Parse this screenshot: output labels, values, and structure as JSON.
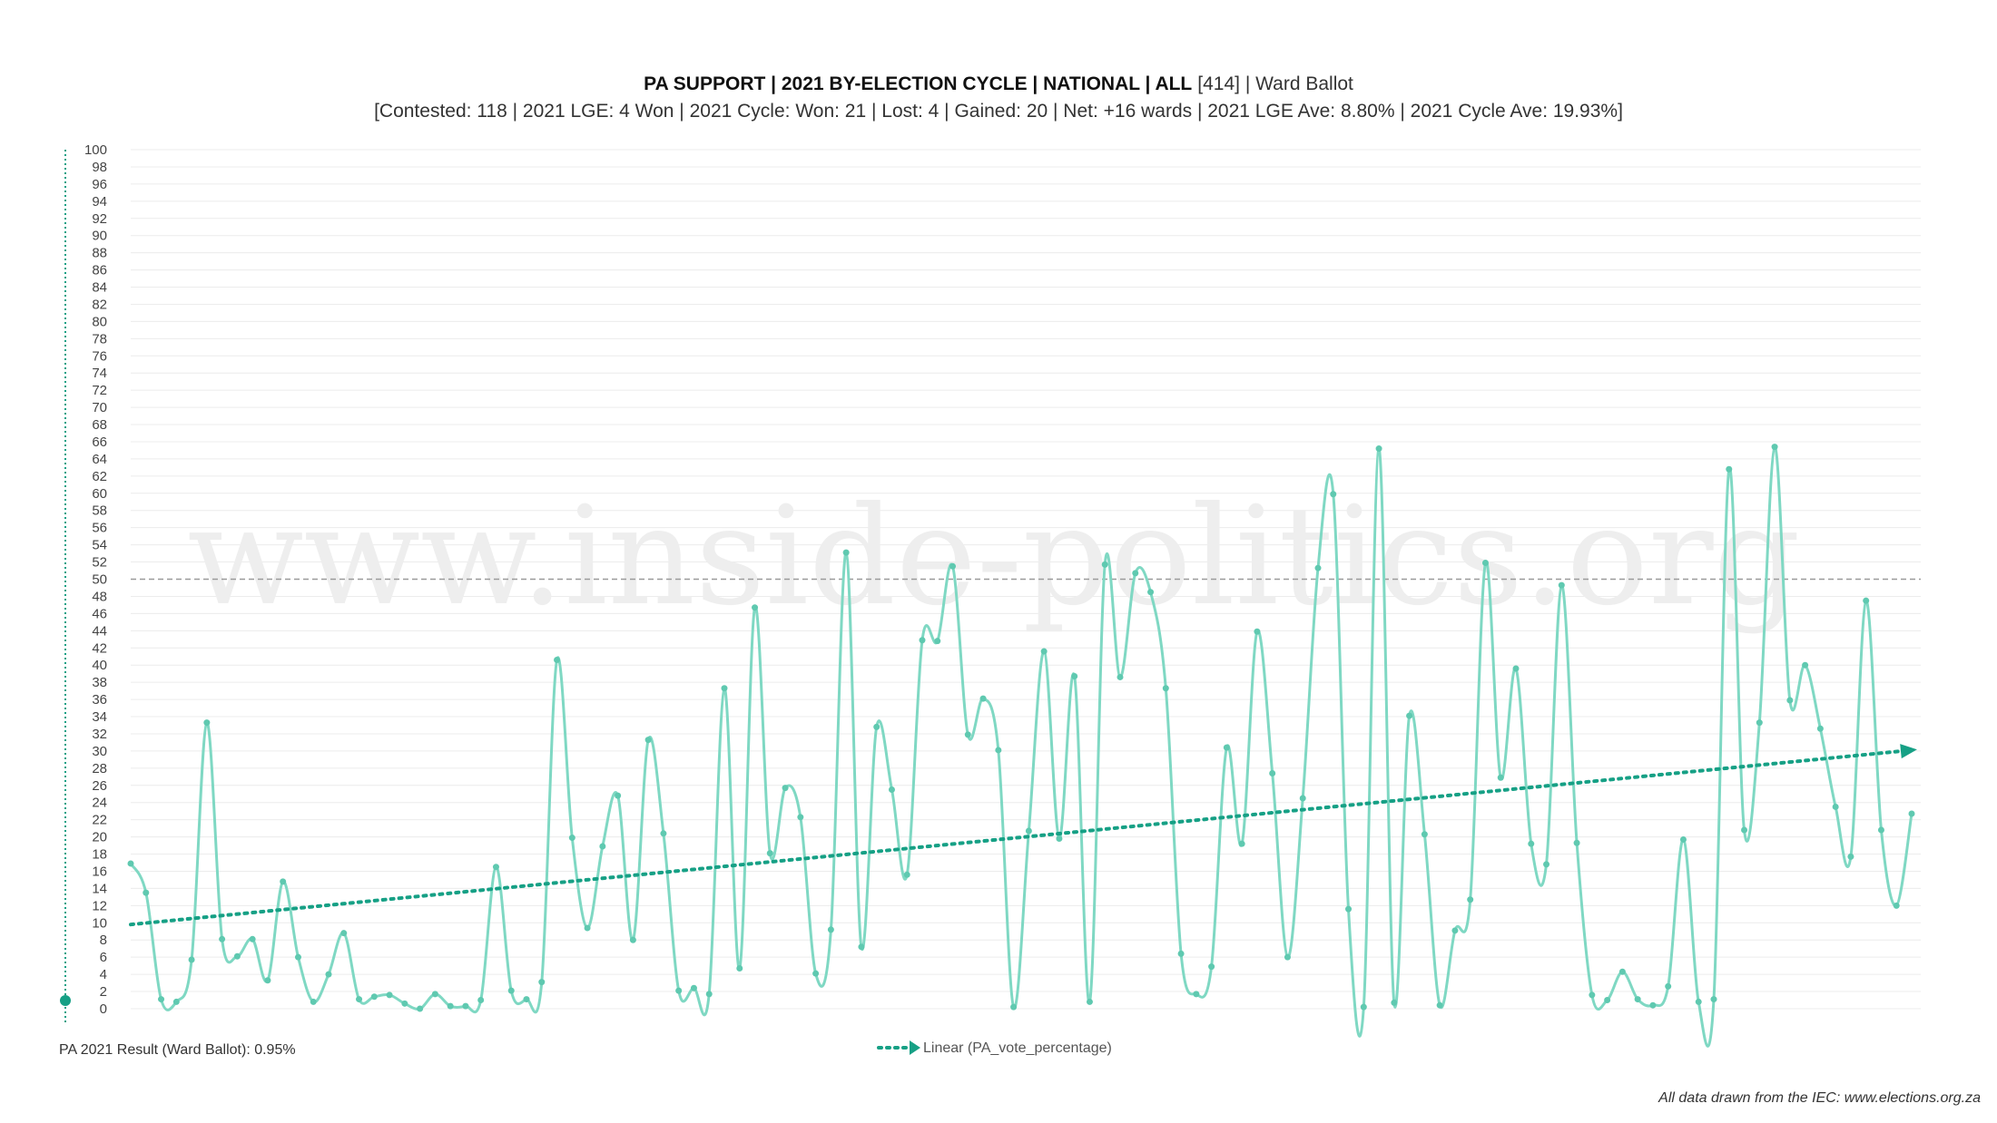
{
  "chart_data": {
    "type": "line",
    "title_bold": "PA SUPPORT | 2021 BY-ELECTION CYCLE | NATIONAL | ALL",
    "title_count": "[414]",
    "title_tail": " | Ward Ballot",
    "subtitle": "[Contested: 118 | 2021 LGE: 4 Won | 2021 Cycle: Won: 21 | Lost: 4 | Gained: 20 | Net: +16 wards | 2021 LGE Ave: 8.80% | 2021 Cycle Ave: 19.93%]",
    "ylim": [
      0,
      100
    ],
    "ytick_step": 2,
    "reference_line": 50,
    "series": [
      {
        "name": "PA_vote_percentage",
        "color": "#7fd8c3",
        "values": [
          16.9,
          13.5,
          1.1,
          0.8,
          5.7,
          33.3,
          8.1,
          6.1,
          8.1,
          3.3,
          14.8,
          6.0,
          0.8,
          4.0,
          8.8,
          1.1,
          1.4,
          1.6,
          0.6,
          0.0,
          1.7,
          0.3,
          0.3,
          1.0,
          16.5,
          2.1,
          1.1,
          3.1,
          40.6,
          19.9,
          9.4,
          18.9,
          24.8,
          8.0,
          31.3,
          20.4,
          2.1,
          2.4,
          1.7,
          37.3,
          4.7,
          46.7,
          18.1,
          25.7,
          22.3,
          4.1,
          9.2,
          53.1,
          7.2,
          32.8,
          25.5,
          15.6,
          42.9,
          42.8,
          51.5,
          31.9,
          36.1,
          30.1,
          0.2,
          20.7,
          41.6,
          19.8,
          38.7,
          0.8,
          51.7,
          38.6,
          50.7,
          48.5,
          37.3,
          6.4,
          1.7,
          4.9,
          30.4,
          19.2,
          43.9,
          27.4,
          6.0,
          24.5,
          51.3,
          59.9,
          11.6,
          0.2,
          65.2,
          0.7,
          34.1,
          20.3,
          0.4,
          9.1,
          12.7,
          51.9,
          26.9,
          39.6,
          19.2,
          16.8,
          49.3,
          19.3,
          1.6,
          1.0,
          4.3,
          1.1,
          0.4,
          2.6,
          19.7,
          0.8,
          1.1,
          62.8,
          20.8,
          33.3,
          65.4,
          35.9,
          40.0,
          32.6,
          23.5,
          17.7,
          47.5,
          20.8,
          12.0,
          22.7
        ]
      }
    ],
    "trendline": {
      "name": "Linear (PA_vote_percentage)",
      "start": 9.8,
      "end": 30.0,
      "color": "#16a085"
    },
    "result_label": "PA 2021 Result (Ward Ballot): 0.95%",
    "result_value": 0.95,
    "legend_position": "bottom-center",
    "grid": true
  },
  "watermark": "www.inside-politics.org",
  "source": "All data drawn from the IEC: www.elections.org.za"
}
